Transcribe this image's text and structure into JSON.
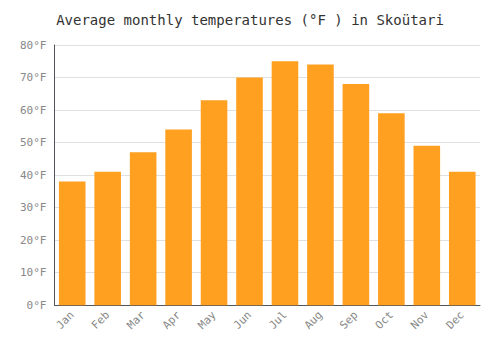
{
  "chart_data": {
    "type": "bar",
    "title": "Average monthly temperatures (°F ) in Skoütari",
    "categories": [
      "Jan",
      "Feb",
      "Mar",
      "Apr",
      "May",
      "Jun",
      "Jul",
      "Aug",
      "Sep",
      "Oct",
      "Nov",
      "Dec"
    ],
    "values": [
      38,
      41,
      47,
      54,
      63,
      70,
      75,
      74,
      68,
      59,
      49,
      41
    ],
    "color": "#FFA020",
    "ylim": [
      0,
      80
    ],
    "yticks": [
      {
        "value": 0,
        "label": "0°F"
      },
      {
        "value": 10,
        "label": "10°F"
      },
      {
        "value": 20,
        "label": "20°F"
      },
      {
        "value": 30,
        "label": "30°F"
      },
      {
        "value": 40,
        "label": "40°F"
      },
      {
        "value": 50,
        "label": "50°F"
      },
      {
        "value": 60,
        "label": "60°F"
      },
      {
        "value": 70,
        "label": "70°F"
      },
      {
        "value": 80,
        "label": "80°F"
      }
    ],
    "grid": true
  }
}
